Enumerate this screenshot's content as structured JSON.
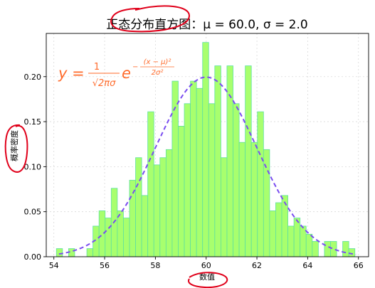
{
  "chart_data": {
    "type": "bar",
    "title": "正态分布直方图：μ = 60.0, σ = 2.0",
    "xlabel": "数值",
    "ylabel": "概率密度",
    "xlim": [
      53.7,
      66.4
    ],
    "ylim": [
      0,
      0.248
    ],
    "grid": true,
    "xticks": [
      "54",
      "56",
      "58",
      "60",
      "62",
      "64",
      "66"
    ],
    "yticks": [
      "0.00",
      "0.05",
      "0.10",
      "0.15",
      "0.20"
    ],
    "bin_start": 54.1,
    "bin_width": 0.24,
    "density_values": [
      0.009,
      0.0,
      0.009,
      0.0,
      0.0,
      0.009,
      0.034,
      0.051,
      0.043,
      0.076,
      0.051,
      0.043,
      0.085,
      0.11,
      0.068,
      0.161,
      0.102,
      0.11,
      0.119,
      0.195,
      0.145,
      0.17,
      0.195,
      0.187,
      0.238,
      0.17,
      0.212,
      0.11,
      0.212,
      0.17,
      0.127,
      0.212,
      0.127,
      0.161,
      0.119,
      0.051,
      0.06,
      0.068,
      0.034,
      0.043,
      0.034,
      0.025,
      0.017,
      0.0,
      0.017,
      0.017,
      0.0,
      0.017,
      0.009
    ],
    "pdf_curve": {
      "mu": 60.0,
      "sigma": 2.0,
      "x_range": [
        54.2,
        65.9
      ]
    },
    "formula": "y = 1/(√(2π)σ) · e^(-(x-μ)²/(2σ²))",
    "colors": {
      "bar_fill": "#a8ff6e",
      "bar_edge": "#5ee0a0",
      "curve": "#7a4df0",
      "formula": "#ff6a2a",
      "annotation": "#e0001a"
    }
  }
}
